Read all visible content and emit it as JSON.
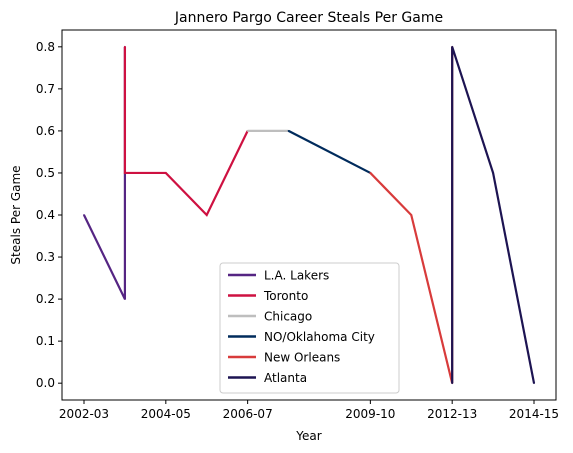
{
  "chart_data": {
    "type": "line",
    "title": "Jannero Pargo Career Steals Per Game",
    "xlabel": "Year",
    "ylabel": "Steals Per Game",
    "x_categories": [
      "2002-03",
      "2003-04",
      "2004-05",
      "2005-06",
      "2006-07",
      "2007-08",
      "2008-09",
      "2009-10",
      "2010-11",
      "2012-13",
      "2013-14",
      "2014-15"
    ],
    "x_tick_labels": [
      "2002-03",
      "2004-05",
      "2006-07",
      "2009-10",
      "2012-13",
      "2014-15"
    ],
    "ylim": [
      -0.04,
      0.84
    ],
    "y_ticks": [
      "0.0",
      "0.1",
      "0.2",
      "0.3",
      "0.4",
      "0.5",
      "0.6",
      "0.7",
      "0.8"
    ],
    "legend_position": "lower center",
    "grid": false,
    "series": [
      {
        "name": "L.A. Lakers",
        "color": "#552583",
        "points": [
          [
            "2002-03",
            0.4
          ],
          [
            "2003-04",
            0.2
          ],
          [
            "2003-04",
            0.8
          ]
        ]
      },
      {
        "name": "Toronto",
        "color": "#CE1141",
        "points": [
          [
            "2003-04",
            0.8
          ],
          [
            "2003-04",
            0.5
          ],
          [
            "2004-05",
            0.5
          ],
          [
            "2005-06",
            0.4
          ],
          [
            "2006-07",
            0.6
          ]
        ]
      },
      {
        "name": "Chicago",
        "color": "#BEBEBE",
        "points": [
          [
            "2006-07",
            0.6
          ],
          [
            "2007-08",
            0.6
          ]
        ]
      },
      {
        "name": "NO/Oklahoma City",
        "color": "#002B5C",
        "points": [
          [
            "2007-08",
            0.6
          ],
          [
            "2009-10",
            0.5
          ]
        ]
      },
      {
        "name": "New Orleans",
        "color": "#D83B3B",
        "points": [
          [
            "2009-10",
            0.5
          ],
          [
            "2010-11",
            0.4
          ],
          [
            "2012-13",
            0.0
          ],
          [
            "2012-13",
            0.8
          ]
        ]
      },
      {
        "name": "Atlanta",
        "color": "#1D1452",
        "points": [
          [
            "2012-13",
            0.0
          ],
          [
            "2012-13",
            0.8
          ],
          [
            "2013-14",
            0.5
          ],
          [
            "2014-15",
            0.0
          ]
        ]
      }
    ]
  }
}
